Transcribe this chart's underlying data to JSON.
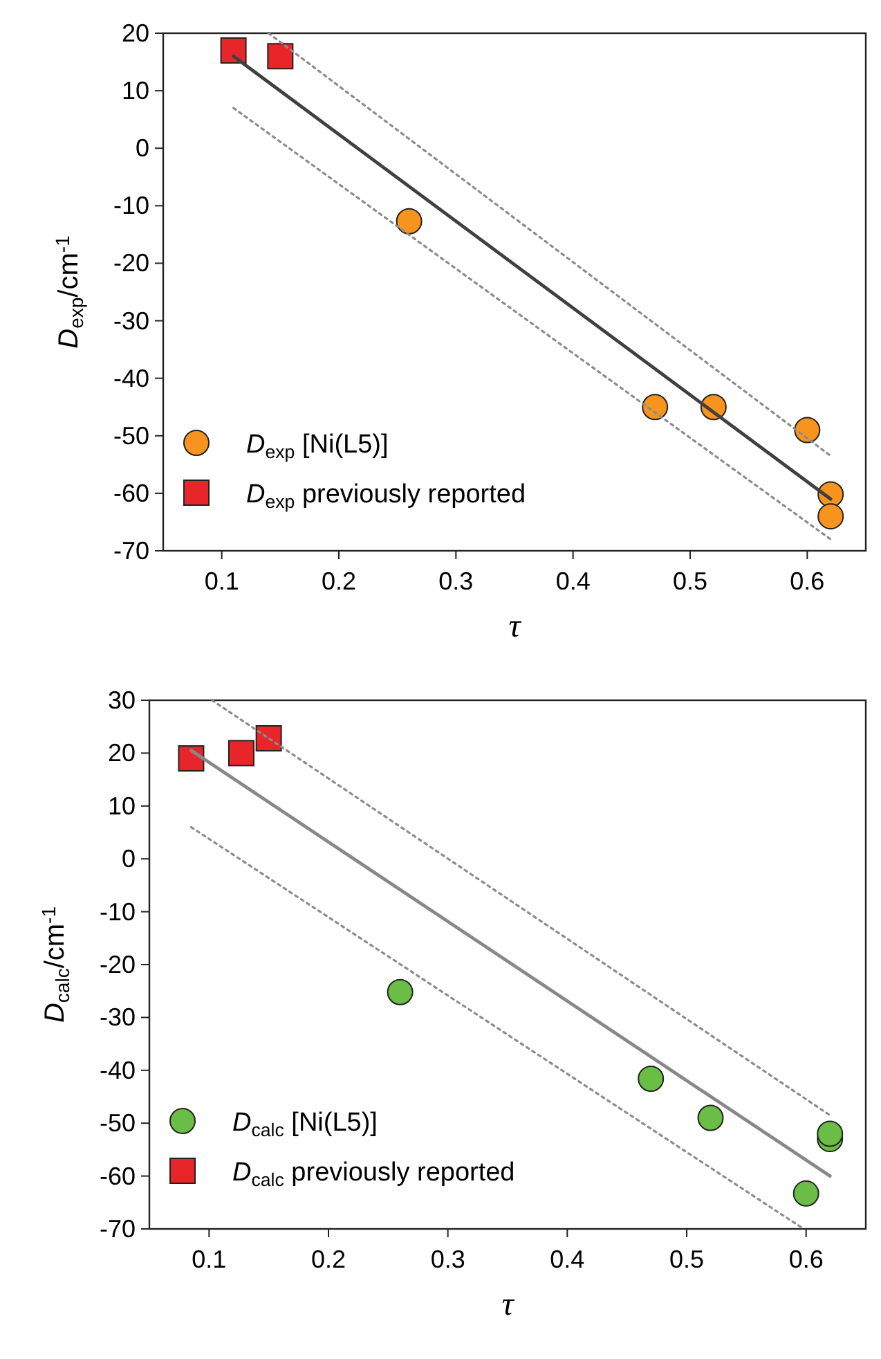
{
  "chart_data": [
    {
      "type": "scatter",
      "xlabel": "τ",
      "ylabel": "D$_{exp}$/cm$^{-1}$",
      "xlim": [
        0.05,
        0.65
      ],
      "xticks": [
        0.1,
        0.2,
        0.3,
        0.4,
        0.5,
        0.6
      ],
      "ylim": [
        -70,
        20
      ],
      "yticks": [
        -70,
        -60,
        -50,
        -40,
        -30,
        -20,
        -10,
        0,
        10,
        20
      ],
      "legend": "bottom left",
      "grid": false,
      "series": [
        {
          "type": "line",
          "color": "#404040",
          "x": [
            0.11,
            0.62
          ],
          "values": [
            16,
            -61
          ],
          "marker": "none",
          "line_style": "solid"
        },
        {
          "type": "line",
          "color": "#8c8c8c",
          "x": [
            0.14,
            0.62
          ],
          "values": [
            20,
            -53.5
          ],
          "marker": "none",
          "line_style": "dotted"
        },
        {
          "type": "line",
          "color": "#8c8c8c",
          "x": [
            0.11,
            0.62
          ],
          "values": [
            7,
            -68
          ],
          "marker": "none",
          "line_style": "dotted"
        },
        {
          "name": "D$_{exp}$ [Ni(L5)]",
          "color": "#f7941d",
          "marker": "circle",
          "x": [
            0.26,
            0.47,
            0.52,
            0.6,
            0.62,
            0.62
          ],
          "values": [
            -12.7,
            -45,
            -45,
            -49,
            -60.2,
            -64
          ]
        },
        {
          "name": "D$_{exp}$ previously reported",
          "color": "#e8262a",
          "marker": "square",
          "x": [
            0.11,
            0.15
          ],
          "values": [
            17,
            16
          ]
        }
      ]
    },
    {
      "type": "scatter",
      "xlabel": "τ",
      "ylabel": "D$_{calc}$/cm$^{-1}$",
      "xlim": [
        0.05,
        0.65
      ],
      "xticks": [
        0.1,
        0.2,
        0.3,
        0.4,
        0.5,
        0.6
      ],
      "ylim": [
        -70,
        30
      ],
      "yticks": [
        -70,
        -60,
        -50,
        -40,
        -30,
        -20,
        -10,
        0,
        10,
        20,
        30
      ],
      "legend": "bottom left",
      "grid": false,
      "series": [
        {
          "type": "line",
          "color": "#888888",
          "x": [
            0.085,
            0.62
          ],
          "values": [
            20.5,
            -60
          ],
          "marker": "none",
          "line_style": "solid"
        },
        {
          "type": "line",
          "color": "#8c8c8c",
          "x": [
            0.1025,
            0.62
          ],
          "values": [
            30,
            -48.5
          ],
          "marker": "none",
          "line_style": "dotted"
        },
        {
          "type": "line",
          "color": "#8c8c8c",
          "x": [
            0.085,
            0.598
          ],
          "values": [
            6,
            -70
          ],
          "marker": "none",
          "line_style": "dotted"
        },
        {
          "name": "D$_{calc}$ [Ni(L5)]",
          "color": "#6abd45",
          "marker": "circle",
          "x": [
            0.26,
            0.47,
            0.52,
            0.6,
            0.62,
            0.62
          ],
          "values": [
            -25.2,
            -41.6,
            -49,
            -63.3,
            -53,
            -52
          ]
        },
        {
          "name": "D$_{calc}$ previously reported",
          "color": "#e8262a",
          "marker": "square",
          "x": [
            0.085,
            0.127,
            0.15
          ],
          "values": [
            19,
            20,
            22.8
          ]
        }
      ]
    }
  ]
}
